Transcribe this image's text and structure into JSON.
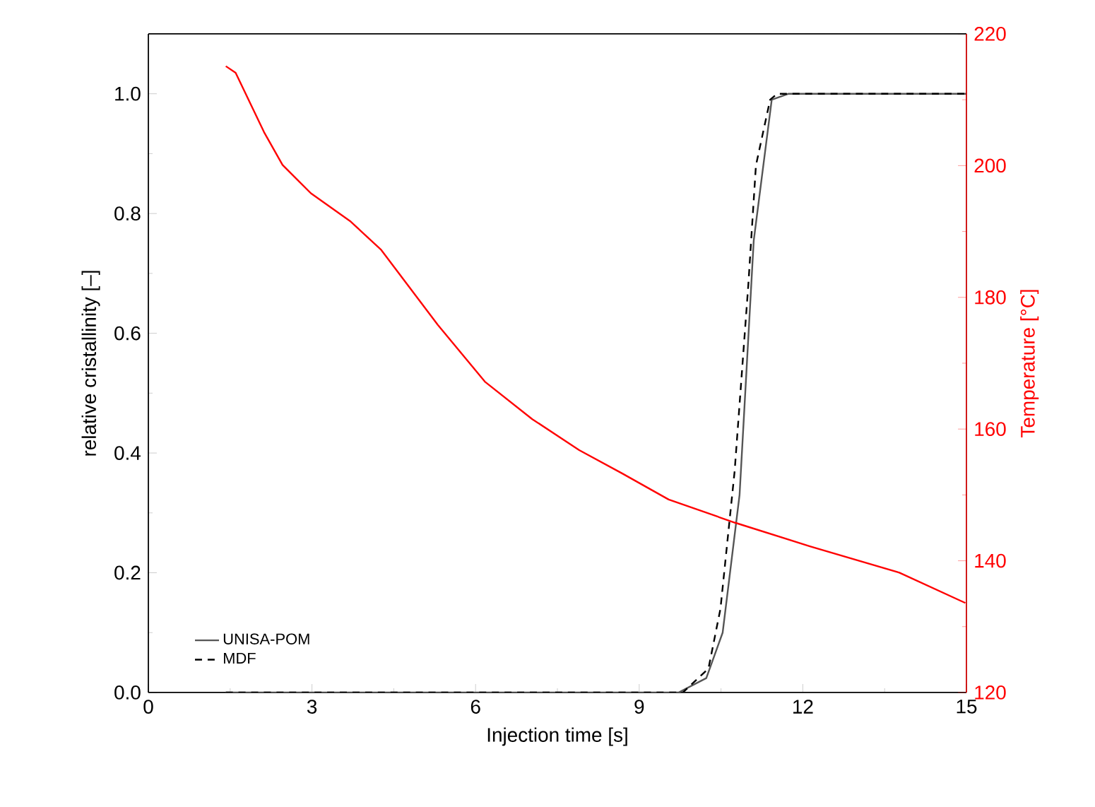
{
  "chart_data": {
    "type": "line",
    "xlabel": "Injection time [s]",
    "ylabel": "relative cristallinity [–]",
    "y2label": "Temperature [°C]",
    "xlim": [
      0,
      15
    ],
    "xticks": [
      0,
      3,
      6,
      9,
      12,
      15
    ],
    "ylim": [
      0,
      1.1
    ],
    "yticks": [
      {
        "value": 0,
        "label": "0.0"
      },
      {
        "value": 0.2,
        "label": "0.2"
      },
      {
        "value": 0.4,
        "label": "0.4"
      },
      {
        "value": 0.6,
        "label": "0.6"
      },
      {
        "value": 0.8,
        "label": "0.8"
      },
      {
        "value": 1,
        "label": "1.0"
      }
    ],
    "y2lim": [
      120,
      220
    ],
    "y2ticks": [
      120,
      140,
      160,
      180,
      200,
      220
    ],
    "legend": "bottom left",
    "grid": false,
    "marker": "none",
    "series": [
      {
        "name": "UNISA-POM",
        "color": "#555555",
        "line_style": "solid",
        "x": [
          1.42,
          9.72,
          10.23,
          10.53,
          10.84,
          11.1,
          11.43,
          11.74,
          15
        ],
        "values": [
          0,
          0,
          0.024,
          0.1,
          0.33,
          0.755,
          0.99,
          1.0,
          1.0
        ]
      },
      {
        "name": "MDF",
        "color": "#000000",
        "line_style": "dashed",
        "x": [
          1.42,
          9.8,
          10.27,
          10.49,
          10.75,
          11.0,
          11.14,
          11.4,
          11.53,
          15
        ],
        "values": [
          0,
          0,
          0.04,
          0.14,
          0.37,
          0.68,
          0.88,
          0.99,
          1.0,
          1.0
        ]
      },
      {
        "color": "#ff0000",
        "line_style": "solid",
        "axis": "y2",
        "x": [
          1.42,
          1.6,
          2.12,
          2.46,
          2.98,
          3.71,
          4.27,
          5.31,
          6.17,
          7.04,
          7.9,
          8.68,
          9.54,
          10.75,
          12.13,
          13.77,
          14.98
        ],
        "values": [
          215.1,
          214.1,
          205.1,
          200.1,
          195.8,
          191.5,
          187.2,
          175.8,
          167.2,
          161.5,
          156.8,
          153.3,
          149.3,
          145.8,
          142.2,
          138.2,
          133.6
        ]
      }
    ]
  }
}
